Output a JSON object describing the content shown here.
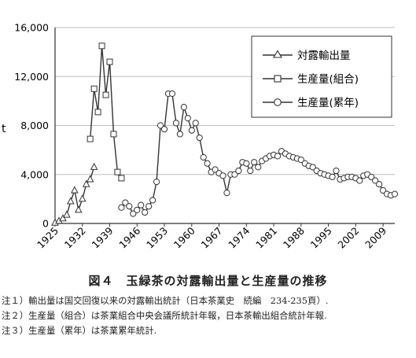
{
  "chart_data": {
    "type": "line",
    "ylabel": "t",
    "ylim": [
      0,
      16000
    ],
    "yticks": [
      "0",
      "4,000",
      "8,000",
      "12,000",
      "16,000"
    ],
    "xlim": [
      1925,
      2012
    ],
    "xticks": [
      "1925",
      "1932",
      "1939",
      "1946",
      "1953",
      "1960",
      "1967",
      "1974",
      "1981",
      "1988",
      "1995",
      "2002",
      "2009"
    ],
    "grid": "horizontal",
    "legend_position": "upper-right",
    "series": [
      {
        "name": "対露輸出量",
        "marker": "triangle",
        "points": [
          [
            1925,
            50
          ],
          [
            1926,
            200
          ],
          [
            1927,
            400
          ],
          [
            1928,
            700
          ],
          [
            1929,
            1800
          ],
          [
            1930,
            2700
          ],
          [
            1931,
            1100
          ],
          [
            1932,
            2000
          ],
          [
            1933,
            3200
          ],
          [
            1934,
            3600
          ],
          [
            1935,
            4600
          ]
        ]
      },
      {
        "name": "生産量(組合)",
        "marker": "square",
        "points": [
          [
            1934,
            6900
          ],
          [
            1935,
            11000
          ],
          [
            1936,
            9100
          ],
          [
            1937,
            14500
          ],
          [
            1938,
            10500
          ],
          [
            1939,
            13200
          ],
          [
            1940,
            7300
          ],
          [
            1941,
            4200
          ],
          [
            1942,
            3700
          ]
        ]
      },
      {
        "name": "生産量(累年)",
        "marker": "circle",
        "points": [
          [
            1942,
            1300
          ],
          [
            1943,
            1700
          ],
          [
            1944,
            1400
          ],
          [
            1945,
            800
          ],
          [
            1946,
            1100
          ],
          [
            1947,
            1500
          ],
          [
            1948,
            900
          ],
          [
            1949,
            1400
          ],
          [
            1950,
            1900
          ],
          [
            1951,
            3400
          ],
          [
            1952,
            8000
          ],
          [
            1953,
            7700
          ],
          [
            1954,
            10600
          ],
          [
            1955,
            10600
          ],
          [
            1956,
            8200
          ],
          [
            1957,
            7300
          ],
          [
            1958,
            9500
          ],
          [
            1959,
            8600
          ],
          [
            1960,
            7600
          ],
          [
            1961,
            8200
          ],
          [
            1962,
            7000
          ],
          [
            1963,
            5400
          ],
          [
            1964,
            4900
          ],
          [
            1965,
            4200
          ],
          [
            1966,
            4400
          ],
          [
            1967,
            4100
          ],
          [
            1968,
            3900
          ],
          [
            1969,
            2500
          ],
          [
            1970,
            4000
          ],
          [
            1971,
            4000
          ],
          [
            1972,
            4300
          ],
          [
            1973,
            5000
          ],
          [
            1974,
            4900
          ],
          [
            1975,
            4300
          ],
          [
            1976,
            5000
          ],
          [
            1977,
            4600
          ],
          [
            1978,
            5100
          ],
          [
            1979,
            5300
          ],
          [
            1980,
            5500
          ],
          [
            1981,
            5600
          ],
          [
            1982,
            5500
          ],
          [
            1983,
            5900
          ],
          [
            1984,
            5700
          ],
          [
            1985,
            5500
          ],
          [
            1986,
            5400
          ],
          [
            1987,
            5300
          ],
          [
            1988,
            5200
          ],
          [
            1989,
            4900
          ],
          [
            1990,
            4700
          ],
          [
            1991,
            4600
          ],
          [
            1992,
            4300
          ],
          [
            1993,
            4100
          ],
          [
            1994,
            4000
          ],
          [
            1995,
            3900
          ],
          [
            1996,
            3800
          ],
          [
            1997,
            4300
          ],
          [
            1998,
            3600
          ],
          [
            1999,
            3700
          ],
          [
            2000,
            3800
          ],
          [
            2001,
            3800
          ],
          [
            2002,
            3700
          ],
          [
            2003,
            3500
          ],
          [
            2004,
            3900
          ],
          [
            2005,
            4000
          ],
          [
            2006,
            3800
          ],
          [
            2007,
            3500
          ],
          [
            2008,
            3200
          ],
          [
            2009,
            2700
          ],
          [
            2010,
            2400
          ],
          [
            2011,
            2300
          ],
          [
            2012,
            2400
          ]
        ]
      }
    ]
  },
  "caption": "図４　玉緑茶の対露輸出量と生産量の推移",
  "notes": [
    "注１）輸出量は国交回復以来の対露輸出統計（日本茶業史　続編　234-235頁）.",
    "注２）生産量（組合）は茶業組合中央会議所統計年報，日本茶輸出組合統計年報.",
    "注３）生産量（累年）は茶業累年統計."
  ]
}
